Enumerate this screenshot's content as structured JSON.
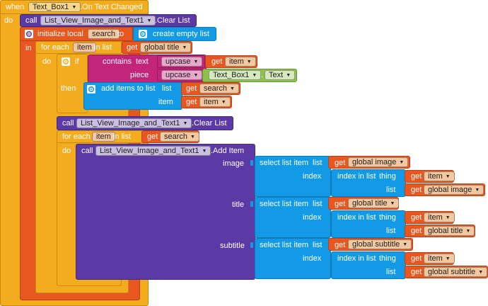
{
  "event": {
    "when": "when",
    "component": "Text_Box1",
    "event_name": ".On Text Changed",
    "do": "do"
  },
  "clear1": {
    "call": "call",
    "component": "List_View_Image_and_Text1",
    "method": ".Clear List"
  },
  "init": {
    "label": "initialize local",
    "var_name": "search",
    "to": "to",
    "in": "in",
    "value": "create empty list"
  },
  "foreach1": {
    "label": "for each",
    "var": "item",
    "in_list": "in list",
    "do": "do",
    "get": "get",
    "source": "global title"
  },
  "ifblock": {
    "if": "if",
    "then": "then"
  },
  "contains": {
    "label": "contains",
    "text": "text",
    "piece": "piece"
  },
  "upcase1": {
    "label": "upcase"
  },
  "get_item1": {
    "get": "get",
    "value": "item"
  },
  "upcase2": {
    "label": "upcase"
  },
  "textbox": {
    "component": "Text_Box1",
    "prop": "Text"
  },
  "additems": {
    "label": "add items to list",
    "list": "list",
    "item": "item"
  },
  "get_search1": {
    "get": "get",
    "value": "search"
  },
  "get_item2": {
    "get": "get",
    "value": "item"
  },
  "clear2": {
    "call": "call",
    "component": "List_View_Image_and_Text1",
    "method": ".Clear List"
  },
  "foreach2": {
    "label": "for each",
    "var": "item",
    "in_list": "in list",
    "do": "do",
    "get": "get",
    "source": "search"
  },
  "additem": {
    "call": "call",
    "component": "List_View_Image_and_Text1",
    "method": ".Add Item",
    "image": "image",
    "title": "title",
    "subtitle": "subtitle"
  },
  "sel1": {
    "label": "select list item",
    "list": "list",
    "index": "index",
    "get": "get",
    "source": "global image"
  },
  "idx1": {
    "label": "index in list",
    "thing": "thing",
    "list": "list",
    "get_thing": "get",
    "thing_val": "item",
    "get_list": "get",
    "list_val": "global image"
  },
  "sel2": {
    "label": "select list item",
    "list": "list",
    "index": "index",
    "get": "get",
    "source": "global title"
  },
  "idx2": {
    "label": "index in list",
    "thing": "thing",
    "list": "list",
    "get_thing": "get",
    "thing_val": "item",
    "get_list": "get",
    "list_val": "global title"
  },
  "sel3": {
    "label": "select list item",
    "list": "list",
    "index": "index",
    "get": "get",
    "source": "global subtitle"
  },
  "idx3": {
    "label": "index in list",
    "thing": "thing",
    "list": "list",
    "get_thing": "get",
    "thing_val": "item",
    "get_list": "get",
    "list_val": "global subtitle"
  },
  "colors": {
    "event": "#F4AC1F",
    "local": "#E7571F",
    "component": "#5C3AA6",
    "lists": "#129AE6",
    "variables": "#E7571F",
    "text": "#C2257A",
    "property": "#8BC34A"
  },
  "icons": {
    "mutator": "gear-icon",
    "dropdown": "dropdown-arrow-icon"
  }
}
